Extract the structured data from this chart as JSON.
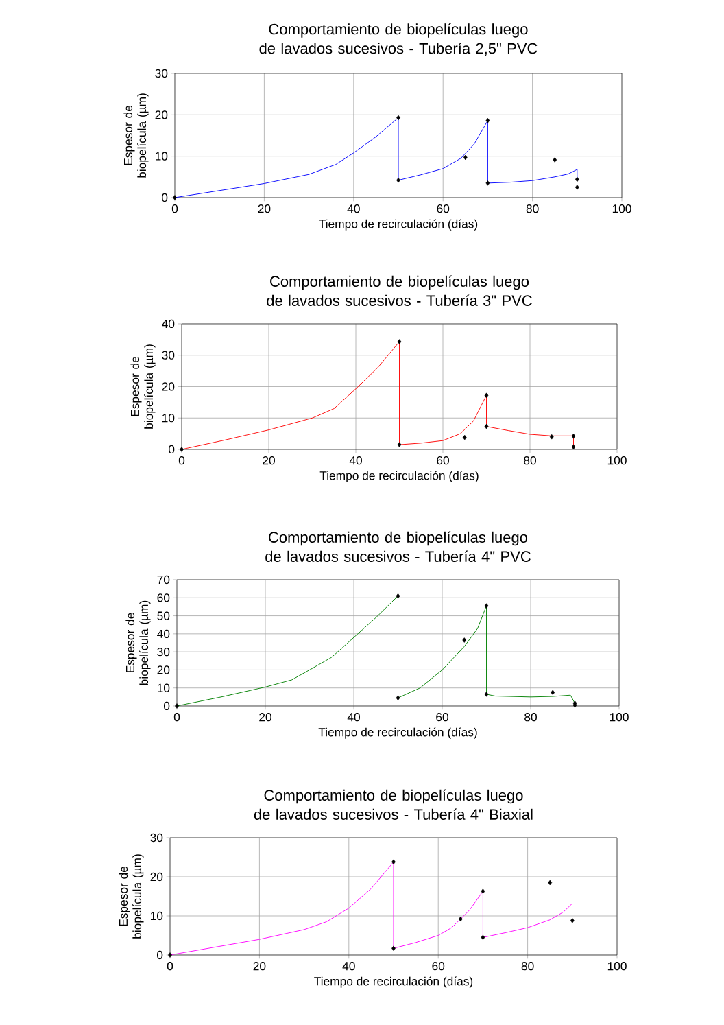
{
  "chart_data": [
    {
      "type": "line",
      "title": "Comportamiento de biopelículas luego de lavados sucesivos - Tubería 2,5\" PVC",
      "xlabel": "Tiempo de recirculación (días)",
      "ylabel": "Espesor de biopelícula (µm)",
      "xlim": [
        0,
        100
      ],
      "ylim": [
        0,
        30
      ],
      "xticks": [
        0,
        20,
        40,
        60,
        80,
        100
      ],
      "yticks": [
        0,
        10,
        20,
        30
      ],
      "grid": true,
      "series": [
        {
          "color": "#0000ff",
          "marker": "none",
          "x": [
            0,
            10,
            20,
            30,
            36,
            40,
            45,
            50,
            50,
            55,
            60,
            64,
            67,
            70,
            70,
            75,
            80,
            85,
            88,
            90,
            90
          ],
          "values": [
            0,
            1.7,
            3.4,
            5.6,
            8,
            10.8,
            14.7,
            19.3,
            4.2,
            5.5,
            7,
            9.5,
            13,
            18.6,
            3.5,
            3.7,
            4.1,
            5,
            5.7,
            6.8,
            4.4
          ]
        },
        {
          "type": "scatter",
          "color": "#000000",
          "marker": "diamond",
          "x": [
            0,
            50,
            50,
            65,
            70,
            70,
            85,
            90,
            90
          ],
          "values": [
            0,
            19.3,
            4.2,
            9.7,
            18.6,
            3.5,
            9.1,
            4.4,
            2.5
          ]
        }
      ]
    },
    {
      "type": "line",
      "title": "Comportamiento de biopelículas luego de lavados sucesivos - Tubería 3\" PVC",
      "xlabel": "Tiempo de recirculación (días)",
      "ylabel": "Espesor de biopelícula (µm)",
      "xlim": [
        0,
        100
      ],
      "ylim": [
        0,
        40
      ],
      "xticks": [
        0,
        20,
        40,
        60,
        80,
        100
      ],
      "yticks": [
        0,
        10,
        20,
        30,
        40
      ],
      "grid": true,
      "series": [
        {
          "color": "#ff0000",
          "marker": "none",
          "x": [
            0,
            10,
            20,
            30,
            35,
            40,
            45,
            50,
            50,
            55,
            60,
            64,
            67,
            70,
            70,
            75,
            80,
            85,
            90,
            90
          ],
          "values": [
            0,
            3,
            6.2,
            10,
            13,
            19.3,
            26,
            34.3,
            1.5,
            2,
            2.8,
            5,
            9,
            17.2,
            7.3,
            6,
            4.8,
            4.3,
            4.3,
            0.8
          ]
        },
        {
          "type": "scatter",
          "color": "#000000",
          "marker": "diamond",
          "x": [
            0,
            50,
            50,
            65,
            70,
            70,
            85,
            90,
            90
          ],
          "values": [
            0,
            34.3,
            1.5,
            3.8,
            17.2,
            7.3,
            4,
            4.2,
            0.8
          ]
        }
      ]
    },
    {
      "type": "line",
      "title": "Comportamiento de biopelículas luego de lavados sucesivos - Tubería 4\" PVC",
      "xlabel": "Tiempo de recirculación (días)",
      "ylabel": "Espesor de biopelícula (µm)",
      "xlim": [
        0,
        100
      ],
      "ylim": [
        0,
        70
      ],
      "xticks": [
        0,
        20,
        40,
        60,
        80,
        100
      ],
      "yticks": [
        0,
        10,
        20,
        30,
        40,
        50,
        60,
        70
      ],
      "grid": true,
      "series": [
        {
          "color": "#008000",
          "marker": "none",
          "x": [
            0,
            10,
            20,
            26,
            30,
            35,
            40,
            45,
            50,
            50,
            55,
            60,
            65,
            68,
            70,
            70,
            72,
            80,
            85,
            89,
            90
          ],
          "values": [
            0,
            5,
            10.5,
            14.5,
            20,
            27,
            38,
            49,
            61,
            4.5,
            10,
            20,
            33,
            43,
            55.5,
            6.5,
            5.5,
            5,
            5.3,
            6,
            1.5
          ]
        },
        {
          "type": "scatter",
          "color": "#000000",
          "marker": "diamond",
          "x": [
            0,
            50,
            50,
            65,
            70,
            70,
            85,
            90,
            90
          ],
          "values": [
            0,
            61,
            4.5,
            36.5,
            55.5,
            6.5,
            7.5,
            1.5,
            0.5
          ]
        }
      ]
    },
    {
      "type": "line",
      "title": "Comportamiento de biopelículas luego de lavados sucesivos - Tubería 4\" Biaxial",
      "xlabel": "Tiempo de recirculación (días)",
      "ylabel": "Espesor de biopelícula (µm)",
      "xlim": [
        0,
        100
      ],
      "ylim": [
        0,
        30
      ],
      "xticks": [
        0,
        20,
        40,
        60,
        80,
        100
      ],
      "yticks": [
        0,
        10,
        20,
        30
      ],
      "grid": true,
      "series": [
        {
          "color": "#ff00ff",
          "marker": "none",
          "x": [
            0,
            10,
            20,
            30,
            35,
            40,
            45,
            50,
            50,
            55,
            60,
            63,
            65,
            67,
            70,
            70,
            75,
            80,
            85,
            88,
            90
          ],
          "values": [
            0,
            2,
            4,
            6.5,
            8.5,
            12,
            17,
            23.8,
            1.7,
            3.2,
            5,
            7,
            9.2,
            11.5,
            16.3,
            4.5,
            5.7,
            7,
            9,
            11,
            13.2
          ]
        },
        {
          "type": "scatter",
          "color": "#000000",
          "marker": "diamond",
          "x": [
            0,
            50,
            50,
            65,
            70,
            70,
            85,
            90
          ],
          "values": [
            0,
            23.8,
            1.7,
            9.2,
            16.3,
            4.5,
            18.5,
            8.8
          ]
        }
      ]
    }
  ]
}
